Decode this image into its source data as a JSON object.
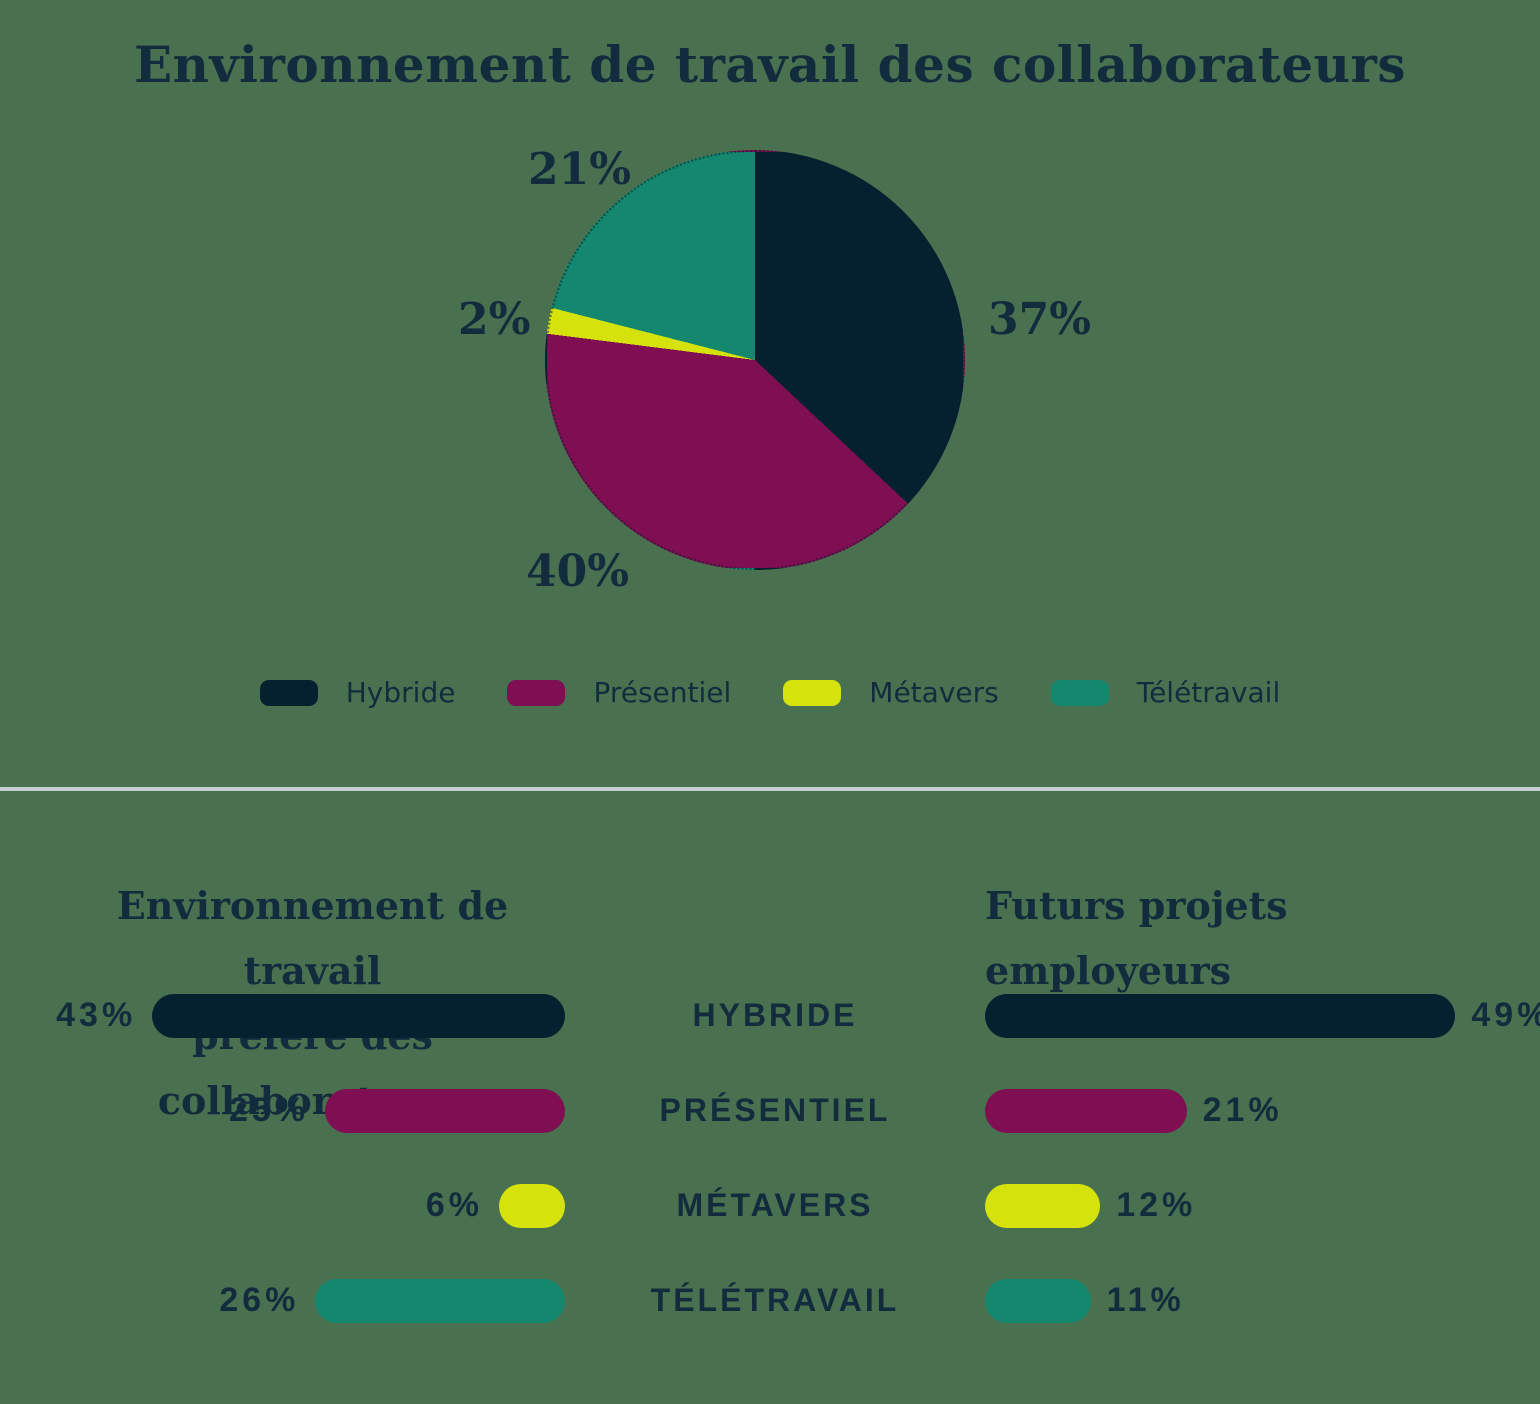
{
  "page": {
    "background_color": "#49714f",
    "text_color": "#122c3e",
    "divider_color": "#c5cdd1"
  },
  "palette": {
    "hybride": "#05202e",
    "presentiel": "#7f0e53",
    "metavers": "#d5e20b",
    "teletravail": "#13886f"
  },
  "chart_data": [
    {
      "type": "pie",
      "title": "Environnement de travail des collaborateurs",
      "start_angle_deg": 0,
      "direction": "clockwise",
      "legend_position": "bottom",
      "segments": [
        {
          "label": "Hybride",
          "value": 37,
          "color": "#05202e"
        },
        {
          "label": "Présentiel",
          "value": 40,
          "color": "#7f0e53"
        },
        {
          "label": "Métavers",
          "value": 2,
          "color": "#d5e20b"
        },
        {
          "label": "Télétravail",
          "value": 21,
          "color": "#13886f"
        }
      ]
    },
    {
      "type": "bar",
      "subtype": "horizontal-paired-pyramid",
      "left_title_lines": [
        "Environnement de travail",
        "préféré des collaborateurs"
      ],
      "right_title_lines": [
        "Futurs projets",
        "employeurs"
      ],
      "categories": [
        "HYBRIDE",
        "PRÉSENTIEL",
        "MÉTAVERS",
        "TÉLÉTRAVAIL"
      ],
      "colors": [
        "#05202e",
        "#7f0e53",
        "#d5e20b",
        "#13886f"
      ],
      "series": [
        {
          "name": "Environnement de travail préféré des collaborateurs",
          "side": "left",
          "values": [
            43,
            25,
            6,
            26
          ]
        },
        {
          "name": "Futurs projets employeurs",
          "side": "right",
          "values": [
            49,
            21,
            12,
            11
          ]
        }
      ],
      "value_suffix": "%",
      "xlim": [
        0,
        50
      ],
      "grid": false
    }
  ]
}
